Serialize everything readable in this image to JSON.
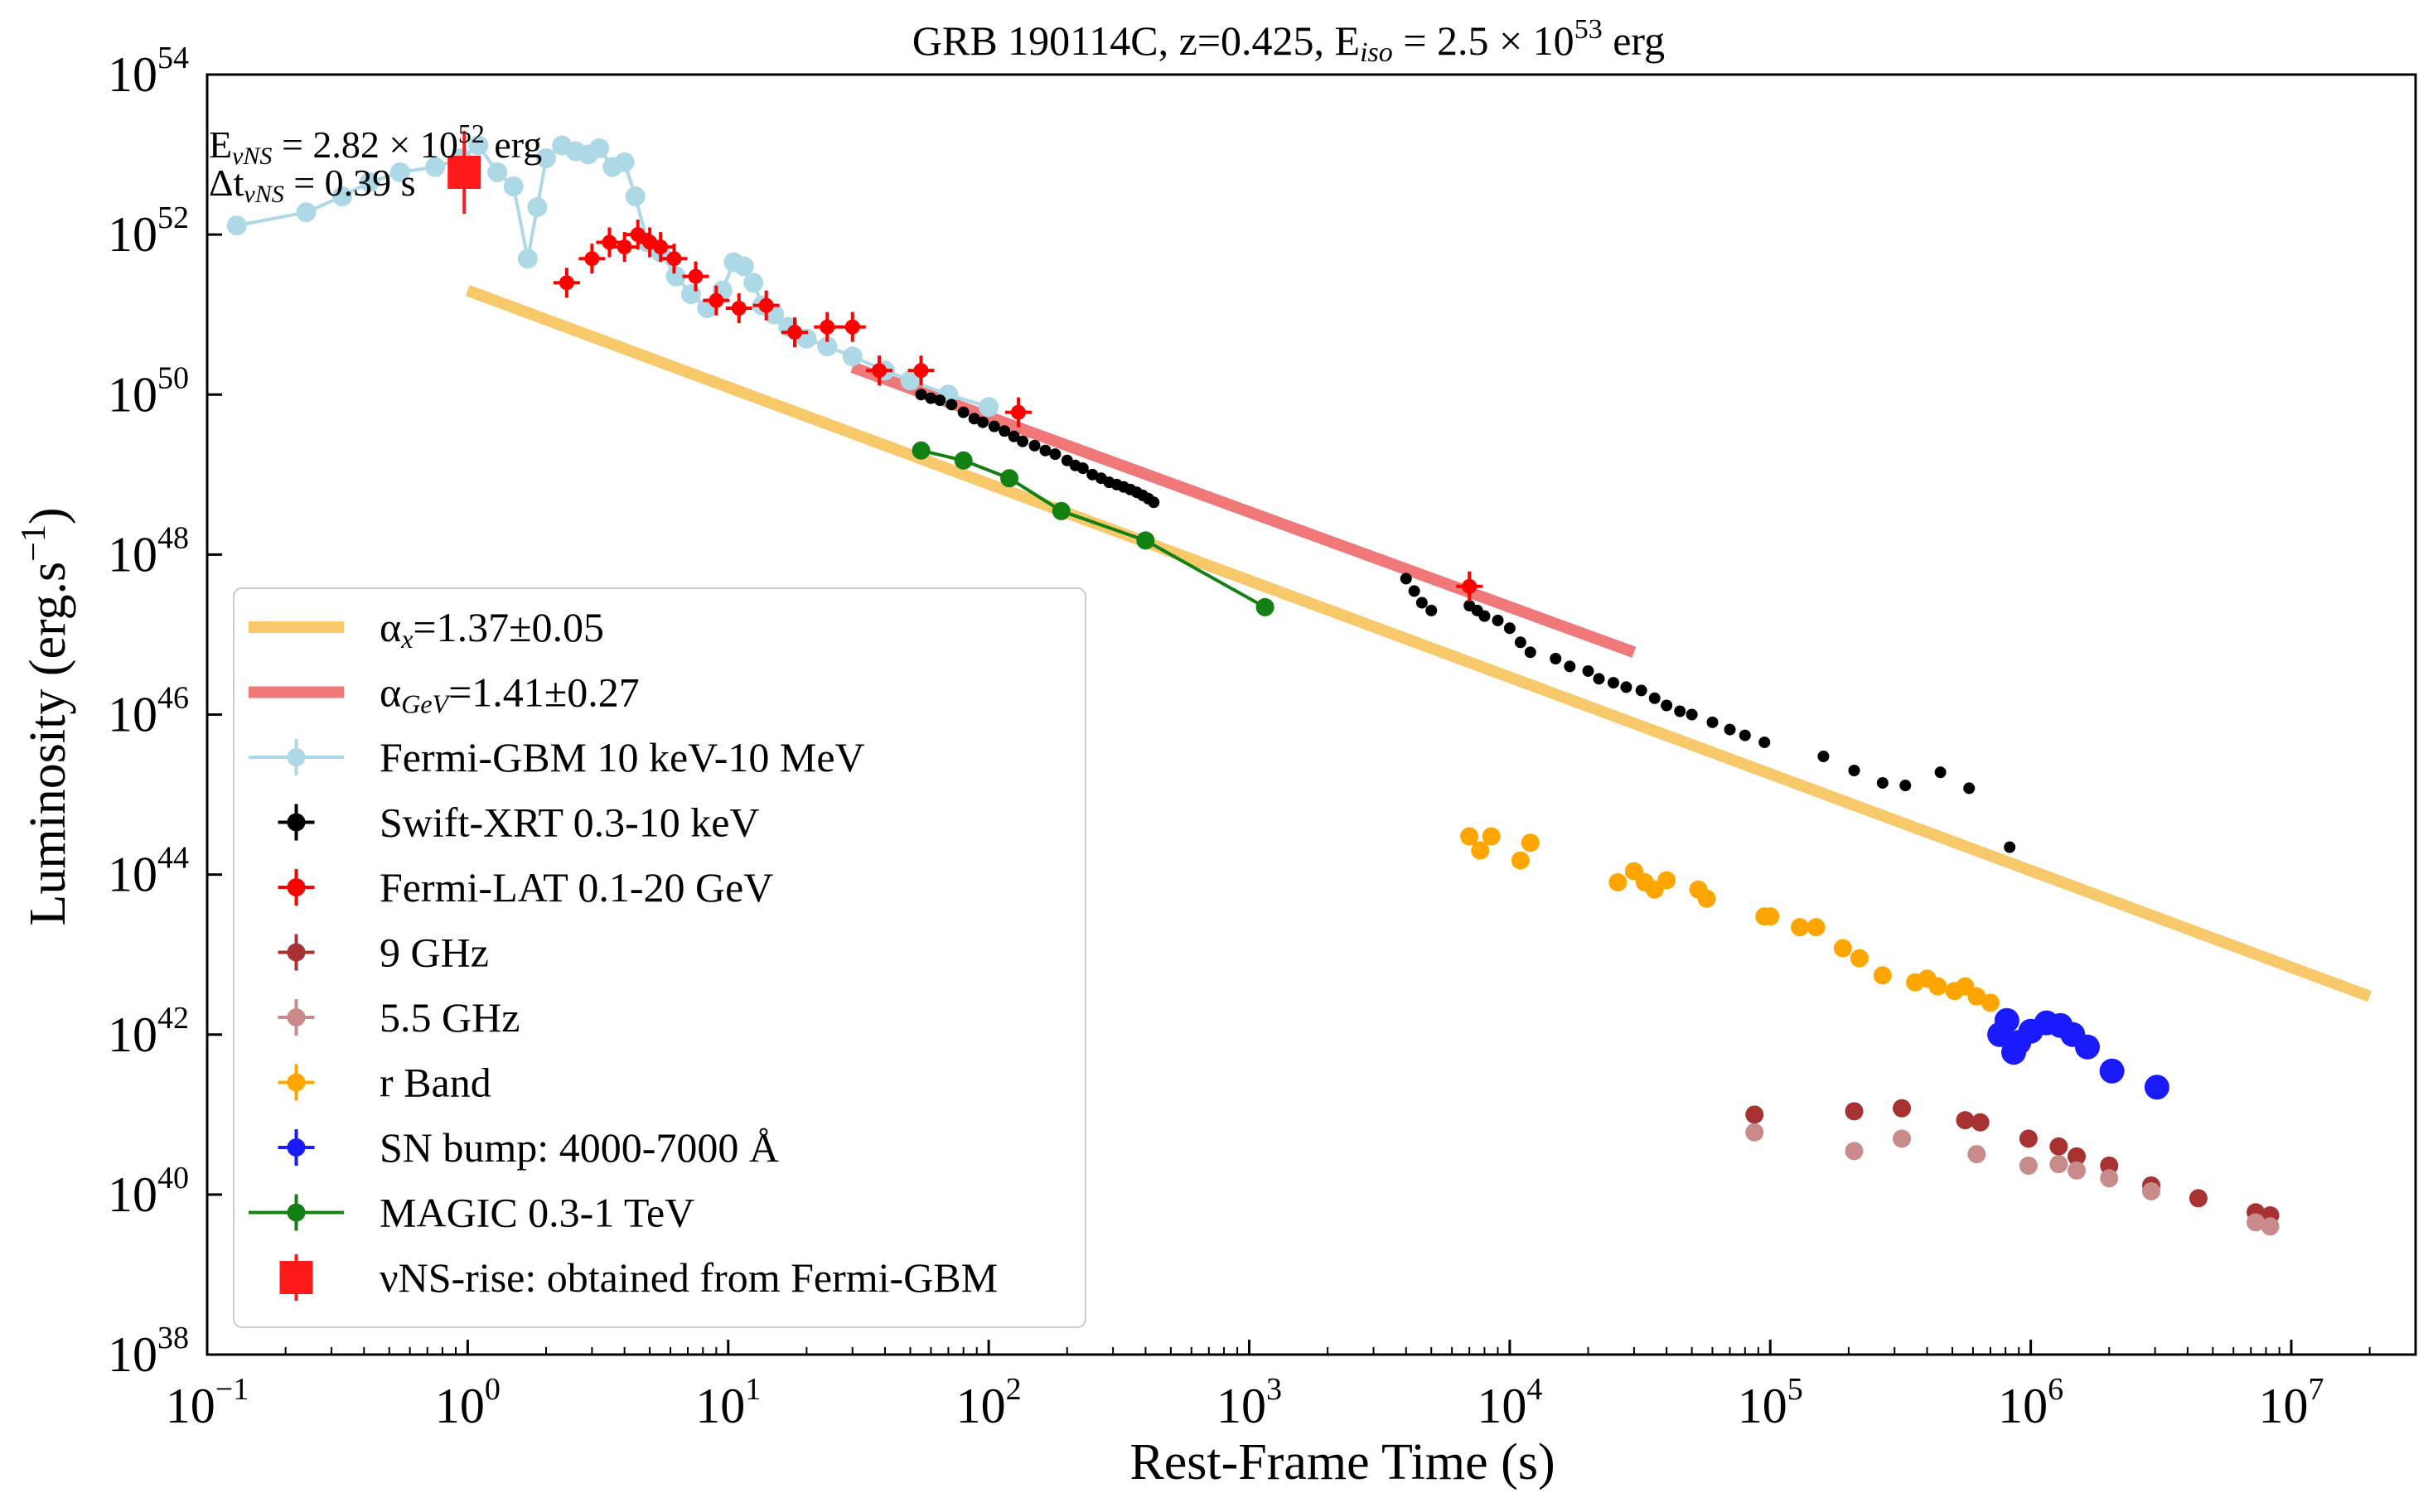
{
  "chart_data": {
    "type": "scatter",
    "title": {
      "prefix": "GRB 190114C,  z=0.425,  E",
      "sub": "iso",
      "mid": " = 2.5 × 10",
      "sup": "53",
      "suffix": " erg"
    },
    "xlabel": "Rest-Frame Time (s)",
    "ylabel": {
      "prefix": "Luminosity (erg.s",
      "sup": "−1",
      "suffix": ")"
    },
    "x_scale": "log",
    "y_scale": "log",
    "xlim": [
      0.1,
      30000000
    ],
    "ylim": [
      1e+38,
      1e+54
    ],
    "x_ticks": [
      {
        "base": "10",
        "exp": "−1",
        "value": 0.1
      },
      {
        "base": "10",
        "exp": "0",
        "value": 1
      },
      {
        "base": "10",
        "exp": "1",
        "value": 10
      },
      {
        "base": "10",
        "exp": "2",
        "value": 100
      },
      {
        "base": "10",
        "exp": "3",
        "value": 1000
      },
      {
        "base": "10",
        "exp": "4",
        "value": 10000
      },
      {
        "base": "10",
        "exp": "5",
        "value": 100000
      },
      {
        "base": "10",
        "exp": "6",
        "value": 1000000
      },
      {
        "base": "10",
        "exp": "7",
        "value": 10000000
      }
    ],
    "y_ticks": [
      {
        "base": "10",
        "exp": "38",
        "value": 1e+38
      },
      {
        "base": "10",
        "exp": "40",
        "value": 1e+40
      },
      {
        "base": "10",
        "exp": "42",
        "value": 1e+42
      },
      {
        "base": "10",
        "exp": "44",
        "value": 1e+44
      },
      {
        "base": "10",
        "exp": "46",
        "value": 1e+46
      },
      {
        "base": "10",
        "exp": "48",
        "value": 1e+48
      },
      {
        "base": "10",
        "exp": "50",
        "value": 1e+50
      },
      {
        "base": "10",
        "exp": "52",
        "value": 1e+52
      },
      {
        "base": "10",
        "exp": "54",
        "value": 1e+54
      }
    ],
    "grid": false,
    "legend_position": "lower-left",
    "annotations": [
      {
        "prefix": "E",
        "sub": "νNS",
        "mid": " = 2.82 × 10",
        "sup": "52",
        "suffix": " erg"
      },
      {
        "prefix": "Δt",
        "sub": "νNS",
        "mid": " =  0.39 s",
        "sup": "",
        "suffix": ""
      }
    ],
    "fits": [
      {
        "name_prefix": "α",
        "name_sub": "x",
        "name_suffix": "=1.37±0.05",
        "color": "#f8c96a",
        "x": [
          1,
          20000000
        ],
        "y": [
          2e+51,
          3e+42
        ]
      },
      {
        "name_prefix": "α",
        "name_sub": "GeV",
        "name_suffix": "=1.41±0.27",
        "color": "#f07878",
        "x": [
          30,
          30000
        ],
        "y": [
          2.2e+50,
          6e+46
        ]
      }
    ],
    "series": [
      {
        "name": "Fermi-GBM 10 keV-10 MeV",
        "color": "#add8e6",
        "marker": "circle",
        "connected": true,
        "points": [
          [
            0.13,
            1.3e+52
          ],
          [
            0.24,
            1.9e+52
          ],
          [
            0.33,
            3e+52
          ],
          [
            0.42,
            4.5e+52
          ],
          [
            0.55,
            6e+52
          ],
          [
            0.75,
            7e+52
          ],
          [
            0.95,
            9e+52
          ],
          [
            1.1,
            1.3e+53
          ],
          [
            1.3,
            6e+52
          ],
          [
            1.5,
            4e+52
          ],
          [
            1.7,
            5e+51
          ],
          [
            1.85,
            2.2e+52
          ],
          [
            2.0,
            9e+52
          ],
          [
            2.3,
            1.3e+53
          ],
          [
            2.6,
            1.1e+53
          ],
          [
            2.9,
            1e+53
          ],
          [
            3.2,
            1.2e+53
          ],
          [
            3.6,
            7e+52
          ],
          [
            4.0,
            8e+52
          ],
          [
            4.4,
            3e+52
          ],
          [
            4.9,
            8e+51
          ],
          [
            5.5,
            6e+51
          ],
          [
            6.3,
            3e+51
          ],
          [
            7.2,
            1.8e+51
          ],
          [
            8.3,
            1.2e+51
          ],
          [
            9.5,
            2e+51
          ],
          [
            10.5,
            4.5e+51
          ],
          [
            11.5,
            4e+51
          ],
          [
            12.5,
            2.5e+51
          ],
          [
            13.5,
            1.3e+51
          ],
          [
            15,
            1e+51
          ],
          [
            17,
            7e+50
          ],
          [
            20,
            5e+50
          ],
          [
            24,
            4e+50
          ],
          [
            30,
            3e+50
          ],
          [
            40,
            2e+50
          ],
          [
            50,
            1.5e+50
          ],
          [
            70,
            1e+50
          ],
          [
            100,
            7e+49
          ]
        ]
      },
      {
        "name": "Swift-XRT 0.3-10 keV",
        "color": "#000000",
        "marker": "circle",
        "connected": false,
        "points": [
          [
            55,
            1e+50
          ],
          [
            60,
            9e+49
          ],
          [
            65,
            8.5e+49
          ],
          [
            72,
            7.5e+49
          ],
          [
            80,
            6e+49
          ],
          [
            88,
            5e+49
          ],
          [
            95,
            4.5e+49
          ],
          [
            105,
            4e+49
          ],
          [
            115,
            3.5e+49
          ],
          [
            125,
            3e+49
          ],
          [
            135,
            2.6e+49
          ],
          [
            150,
            2.3e+49
          ],
          [
            165,
            2e+49
          ],
          [
            180,
            1.8e+49
          ],
          [
            200,
            1.5e+49
          ],
          [
            215,
            1.3e+49
          ],
          [
            230,
            1.2e+49
          ],
          [
            250,
            1e+49
          ],
          [
            270,
            9e+48
          ],
          [
            290,
            8e+48
          ],
          [
            310,
            7.5e+48
          ],
          [
            330,
            7e+48
          ],
          [
            350,
            6.5e+48
          ],
          [
            370,
            6e+48
          ],
          [
            390,
            5.5e+48
          ],
          [
            410,
            5e+48
          ],
          [
            430,
            4.5e+48
          ],
          [
            4000,
            5e+47
          ],
          [
            4300,
            3.5e+47
          ],
          [
            4600,
            2.5e+47
          ],
          [
            5000,
            2e+47
          ],
          [
            7000,
            2.3e+47
          ],
          [
            7500,
            2e+47
          ],
          [
            8000,
            1.7e+47
          ],
          [
            9000,
            1.5e+47
          ],
          [
            10000,
            1.2e+47
          ],
          [
            11000,
            8e+46
          ],
          [
            12000,
            6e+46
          ],
          [
            15000,
            5e+46
          ],
          [
            17000,
            4e+46
          ],
          [
            20000,
            3.5e+46
          ],
          [
            22000,
            2.8e+46
          ],
          [
            25000,
            2.5e+46
          ],
          [
            28000,
            2.2e+46
          ],
          [
            32000,
            2e+46
          ],
          [
            36000,
            1.6e+46
          ],
          [
            40000,
            1.3e+46
          ],
          [
            45000,
            1.1e+46
          ],
          [
            50000,
            1e+46
          ],
          [
            60000,
            8e+45
          ],
          [
            70000,
            6.5e+45
          ],
          [
            80000,
            5.5e+45
          ],
          [
            95000,
            4.5e+45
          ],
          [
            160000,
            3e+45
          ],
          [
            210000,
            2e+45
          ],
          [
            270000,
            1.4e+45
          ],
          [
            330000,
            1.3e+45
          ],
          [
            450000,
            1.9e+45
          ],
          [
            580000,
            1.2e+45
          ],
          [
            830000,
            2.2e+44
          ]
        ]
      },
      {
        "name": "Fermi-LAT 0.1-20 GeV",
        "color": "#ff0000",
        "marker": "circle",
        "connected": false,
        "points": [
          [
            2.4,
            2.5e+51
          ],
          [
            3.0,
            5e+51
          ],
          [
            3.5,
            8e+51
          ],
          [
            4.0,
            7e+51
          ],
          [
            4.5,
            1e+52
          ],
          [
            5.0,
            8e+51
          ],
          [
            5.5,
            7e+51
          ],
          [
            6.2,
            5e+51
          ],
          [
            7.5,
            3e+51
          ],
          [
            9.0,
            1.5e+51
          ],
          [
            11,
            1.2e+51
          ],
          [
            14,
            1.3e+51
          ],
          [
            18,
            6e+50
          ],
          [
            24,
            7e+50
          ],
          [
            30,
            7e+50
          ],
          [
            38,
            2e+50
          ],
          [
            55,
            2e+50
          ],
          [
            130,
            6e+49
          ],
          [
            7000,
            4e+47
          ]
        ]
      },
      {
        "name": "9 GHz",
        "color": "#a83232",
        "marker": "circle",
        "connected": false,
        "points": [
          [
            87000,
            1e+41
          ],
          [
            210000,
            1.1e+41
          ],
          [
            320000,
            1.2e+41
          ],
          [
            560000,
            8.5e+40
          ],
          [
            640000,
            8e+40
          ],
          [
            980000,
            5e+40
          ],
          [
            1280000,
            4e+40
          ],
          [
            1500000,
            3e+40
          ],
          [
            2000000,
            2.3e+40
          ],
          [
            2900000,
            1.3e+40
          ],
          [
            4400000,
            9e+39
          ],
          [
            7300000,
            6e+39
          ],
          [
            8300000,
            5.5e+39
          ]
        ]
      },
      {
        "name": "5.5 GHz",
        "color": "#c98a8a",
        "marker": "circle",
        "connected": false,
        "points": [
          [
            87000,
            6e+40
          ],
          [
            210000,
            3.5e+40
          ],
          [
            320000,
            5e+40
          ],
          [
            620000,
            3.2e+40
          ],
          [
            980000,
            2.3e+40
          ],
          [
            1280000,
            2.4e+40
          ],
          [
            1500000,
            2e+40
          ],
          [
            2000000,
            1.6e+40
          ],
          [
            2900000,
            1.1e+40
          ],
          [
            7300000,
            4.5e+39
          ],
          [
            8300000,
            4e+39
          ]
        ]
      },
      {
        "name": "r Band",
        "color": "#ffa500",
        "marker": "circle",
        "connected": false,
        "points": [
          [
            7000,
            3e+44
          ],
          [
            7700,
            2e+44
          ],
          [
            8500,
            3e+44
          ],
          [
            11000,
            1.5e+44
          ],
          [
            12000,
            2.5e+44
          ],
          [
            26000,
            8e+43
          ],
          [
            30000,
            1.1e+44
          ],
          [
            33000,
            8e+43
          ],
          [
            36000,
            6.5e+43
          ],
          [
            40000,
            8.5e+43
          ],
          [
            53000,
            6.5e+43
          ],
          [
            57000,
            5e+43
          ],
          [
            95000,
            3e+43
          ],
          [
            100000,
            3e+43
          ],
          [
            130000,
            2.2e+43
          ],
          [
            150000,
            2.2e+43
          ],
          [
            190000,
            1.2e+43
          ],
          [
            220000,
            9e+42
          ],
          [
            270000,
            5.5e+42
          ],
          [
            360000,
            4.5e+42
          ],
          [
            400000,
            5e+42
          ],
          [
            440000,
            4e+42
          ],
          [
            510000,
            3.5e+42
          ],
          [
            560000,
            4e+42
          ],
          [
            620000,
            3e+42
          ],
          [
            700000,
            2.5e+42
          ]
        ]
      },
      {
        "name": "SN bump: 4000-7000 Å",
        "color": "#1a1aff",
        "marker": "circle",
        "connected": false,
        "points": [
          [
            760000,
            1e+42
          ],
          [
            810000,
            1.5e+42
          ],
          [
            860000,
            6e+41
          ],
          [
            900000,
            8e+41
          ],
          [
            1000000,
            1.1e+42
          ],
          [
            1150000,
            1.4e+42
          ],
          [
            1300000,
            1.3e+42
          ],
          [
            1450000,
            1e+42
          ],
          [
            1650000,
            7e+41
          ],
          [
            2050000,
            3.5e+41
          ],
          [
            3050000,
            2.2e+41
          ]
        ]
      },
      {
        "name": "MAGIC 0.3-1 TeV",
        "color": "#138013",
        "marker": "circle",
        "connected": true,
        "points": [
          [
            55,
            2e+49
          ],
          [
            80,
            1.5e+49
          ],
          [
            120,
            9e+48
          ],
          [
            190,
            3.5e+48
          ],
          [
            400,
            1.5e+48
          ],
          [
            1150,
            2.2e+47
          ]
        ]
      },
      {
        "name_prefix": "ν",
        "name": "NS-rise: obtained from Fermi-GBM",
        "color": "#ff1a1a",
        "marker": "square",
        "connected": false,
        "points": [
          [
            0.97,
            6e+52
          ]
        ]
      }
    ]
  }
}
